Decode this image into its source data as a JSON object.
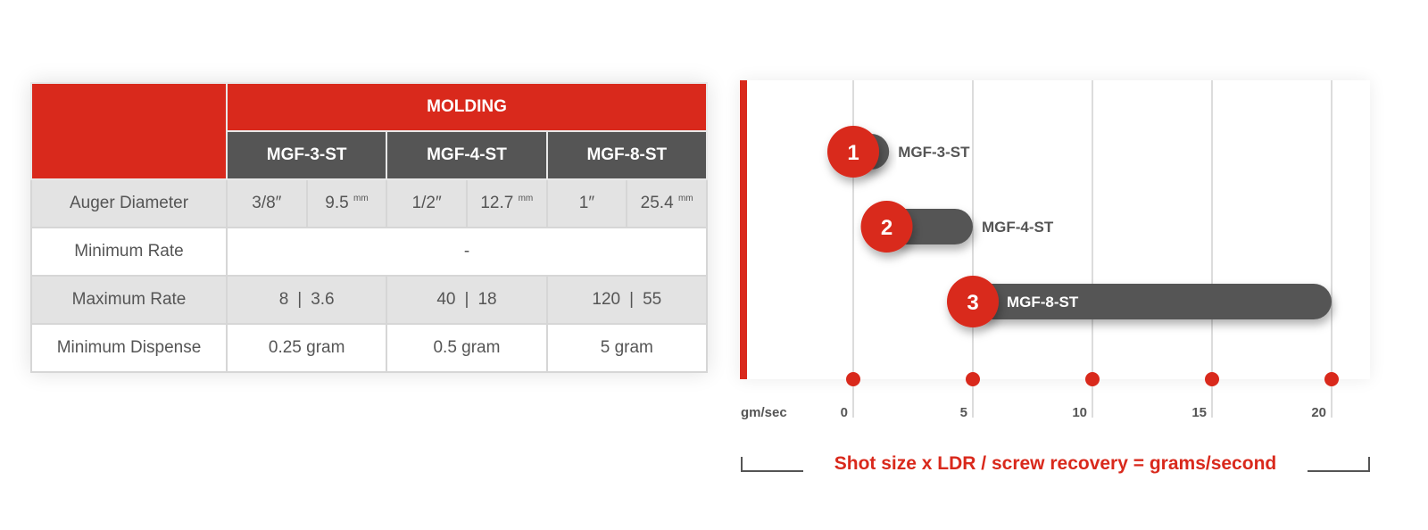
{
  "table": {
    "group_header": "MOLDING",
    "models": [
      "MGF-3-ST",
      "MGF-4-ST",
      "MGF-8-ST"
    ],
    "rows": {
      "auger": {
        "label": "Auger Diameter",
        "values": [
          [
            "3/8″",
            "9.5",
            "mm"
          ],
          [
            "1/2″",
            "12.7",
            "mm"
          ],
          [
            "1″",
            "25.4",
            "mm"
          ]
        ]
      },
      "min_rate": {
        "label": "Minimum Rate",
        "value": "-"
      },
      "max_rate": {
        "label": "Maximum Rate",
        "values": [
          [
            "8",
            "3.6"
          ],
          [
            "40",
            "18"
          ],
          [
            "120",
            "55"
          ]
        ],
        "separator": "|"
      },
      "min_dispense": {
        "label": "Minimum Dispense",
        "values": [
          "0.25 gram",
          "0.5 gram",
          "5 gram"
        ]
      }
    }
  },
  "chart_data": {
    "type": "bar",
    "orientation": "horizontal",
    "xlabel": "gm/sec",
    "xlim": [
      0,
      20
    ],
    "xticks": [
      "0",
      "5",
      "10",
      "15",
      "20"
    ],
    "grid": true,
    "series": [
      {
        "name": "MGF-3-ST",
        "badge": "1",
        "start": 0,
        "end": 1.5
      },
      {
        "name": "MGF-4-ST",
        "badge": "2",
        "start": 1.4,
        "end": 5
      },
      {
        "name": "MGF-8-ST",
        "badge": "3",
        "start": 5,
        "end": 20
      }
    ],
    "caption": "Shot size x LDR / screw recovery = grams/second",
    "colors": {
      "accent": "#d9291c",
      "bar": "#555555",
      "grid": "#d0d0d0"
    }
  }
}
